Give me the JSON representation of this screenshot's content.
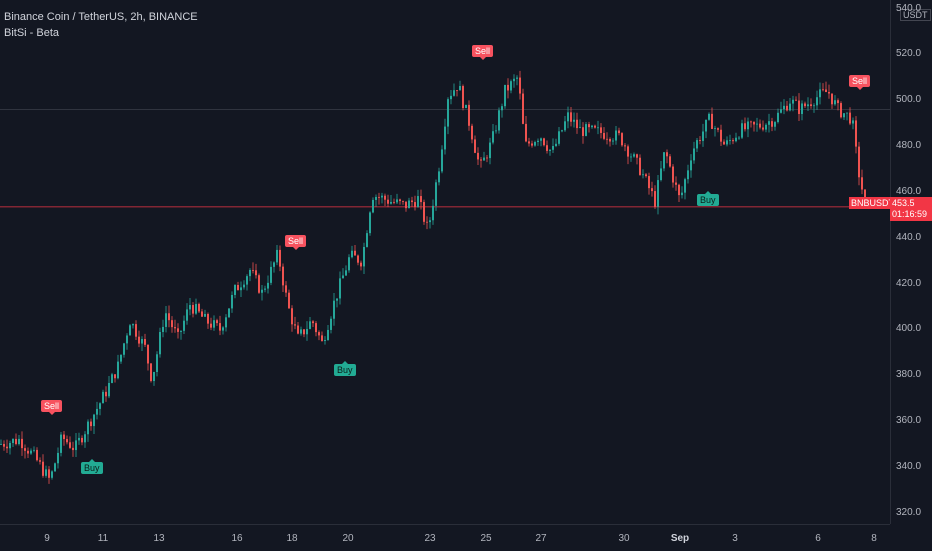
{
  "legend": {
    "symbol": "Binance Coin / TetherUS, 2h, BINANCE",
    "indicator": "BitSi - Beta"
  },
  "currency": "USDT",
  "y_ticks": [
    "540.0",
    "520.0",
    "500.0",
    "480.0",
    "460.0",
    "440.0",
    "420.0",
    "400.0",
    "380.0",
    "360.0",
    "340.0",
    "320.0"
  ],
  "x_ticks": [
    "9",
    "11",
    "13",
    "16",
    "18",
    "20",
    "23",
    "25",
    "27",
    "30",
    "Sep",
    "3",
    "6",
    "8"
  ],
  "signals": {
    "sell_label": "Sell",
    "buy_label": "Buy"
  },
  "last_price": {
    "symbol": "BNBUSDT",
    "value": "453.5",
    "countdown": "01:16:59"
  },
  "colors": {
    "background": "#131722",
    "up": "#26a69a",
    "down": "#ef5350",
    "sell": "#f7525f",
    "buy": "#22ab94"
  },
  "chart_data": {
    "type": "candlestick",
    "y_range": [
      316,
      542
    ],
    "x_range_index": [
      0,
      880
    ],
    "reference_lines": [
      {
        "value": 496,
        "style": "horizontal"
      },
      {
        "value": 453.5,
        "style": "last-price"
      }
    ],
    "price_path": [
      [
        0,
        350
      ],
      [
        20,
        352
      ],
      [
        35,
        344
      ],
      [
        50,
        334
      ],
      [
        62,
        353
      ],
      [
        75,
        348
      ],
      [
        90,
        360
      ],
      [
        105,
        372
      ],
      [
        118,
        384
      ],
      [
        130,
        404
      ],
      [
        145,
        392
      ],
      [
        152,
        378
      ],
      [
        165,
        408
      ],
      [
        178,
        396
      ],
      [
        190,
        411
      ],
      [
        205,
        404
      ],
      [
        220,
        400
      ],
      [
        235,
        417
      ],
      [
        250,
        426
      ],
      [
        262,
        416
      ],
      [
        278,
        433
      ],
      [
        288,
        410
      ],
      [
        298,
        396
      ],
      [
        312,
        404
      ],
      [
        322,
        394
      ],
      [
        335,
        413
      ],
      [
        350,
        432
      ],
      [
        362,
        430
      ],
      [
        372,
        459
      ],
      [
        390,
        456
      ],
      [
        405,
        454
      ],
      [
        418,
        457
      ],
      [
        428,
        443
      ],
      [
        440,
        474
      ],
      [
        448,
        502
      ],
      [
        458,
        507
      ],
      [
        470,
        489
      ],
      [
        480,
        470
      ],
      [
        492,
        482
      ],
      [
        505,
        504
      ],
      [
        518,
        510
      ],
      [
        525,
        480
      ],
      [
        540,
        485
      ],
      [
        552,
        477
      ],
      [
        568,
        493
      ],
      [
        580,
        487
      ],
      [
        600,
        486
      ],
      [
        620,
        484
      ],
      [
        640,
        470
      ],
      [
        655,
        456
      ],
      [
        665,
        478
      ],
      [
        680,
        456
      ],
      [
        692,
        478
      ],
      [
        710,
        492
      ],
      [
        725,
        480
      ],
      [
        740,
        487
      ],
      [
        760,
        489
      ],
      [
        775,
        492
      ],
      [
        790,
        500
      ],
      [
        800,
        496
      ],
      [
        815,
        501
      ],
      [
        828,
        504
      ],
      [
        838,
        496
      ],
      [
        852,
        492
      ],
      [
        858,
        470
      ],
      [
        866,
        453
      ]
    ],
    "signals": [
      {
        "type": "sell",
        "x": 50,
        "price": 366
      },
      {
        "type": "buy",
        "x": 90,
        "price": 339
      },
      {
        "type": "sell",
        "x": 294,
        "price": 438
      },
      {
        "type": "buy",
        "x": 343,
        "price": 382
      },
      {
        "type": "sell",
        "x": 481,
        "price": 521
      },
      {
        "type": "buy",
        "x": 706,
        "price": 456
      },
      {
        "type": "sell",
        "x": 858,
        "price": 508
      }
    ]
  }
}
